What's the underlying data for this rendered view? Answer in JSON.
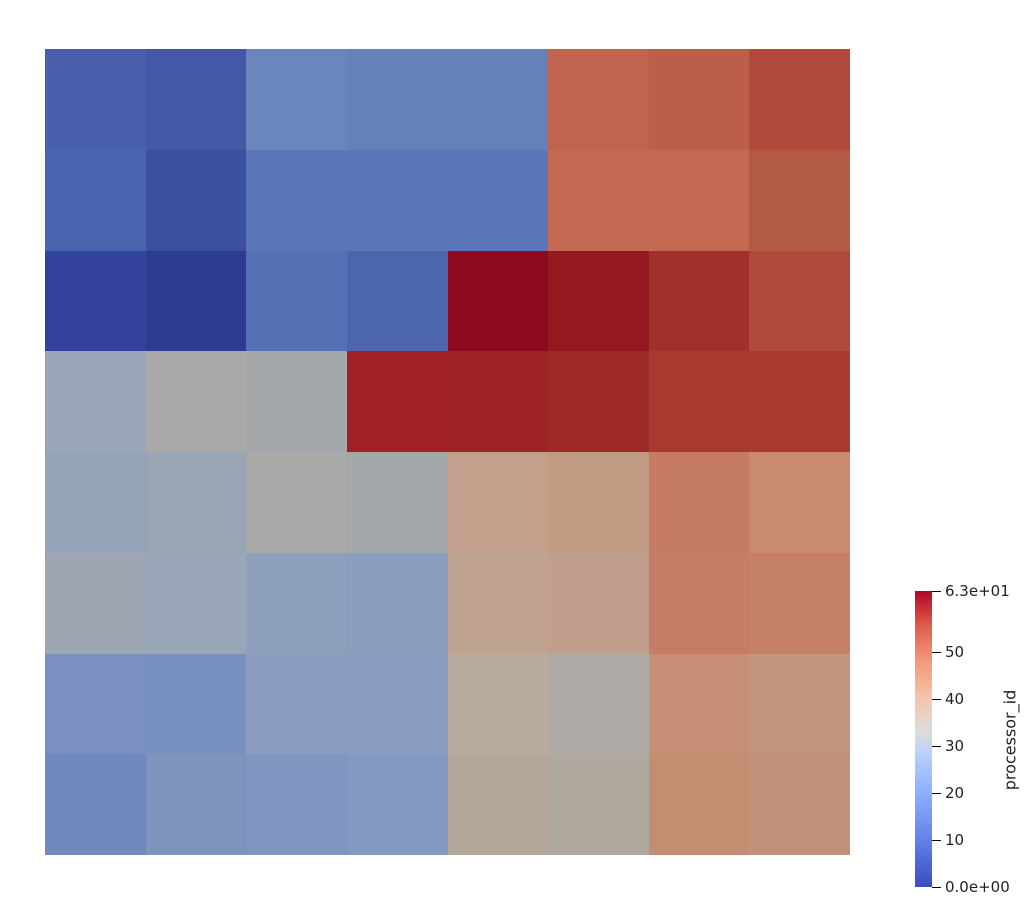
{
  "scalar_bar": {
    "title": "processor_id",
    "range": [
      0,
      63
    ],
    "ticks": [
      {
        "label": "6.3e+01",
        "value": 63
      },
      {
        "label": "50",
        "value": 50
      },
      {
        "label": "40",
        "value": 40
      },
      {
        "label": "30",
        "value": 30
      },
      {
        "label": "20",
        "value": 20
      },
      {
        "label": "10",
        "value": 10
      },
      {
        "label": "0.0e+00",
        "value": 0
      }
    ],
    "colormap": "coolwarm"
  },
  "partition_colors": [
    [
      "#4a5fab",
      "#4558a8",
      "#6a86bd",
      "#6680ba",
      "#6680ba",
      "#c0644e",
      "#bb5f4a",
      "#b04a3c"
    ],
    [
      "#4a64b0",
      "#3c4f9e",
      "#5a75b8",
      "#5a75b8",
      "#5a75b8",
      "#c46a52",
      "#c46a52",
      "#b35a45"
    ],
    [
      "#33429a",
      "#2e3b92",
      "#5570b5",
      "#4e66b0",
      "#8b0a1e",
      "#931820",
      "#a0302a",
      "#b04a3c"
    ],
    [
      "#9aa6b8",
      "#a9a9a7",
      "#a5a8ab",
      "#a21f25",
      "#9e2226",
      "#9f2a28",
      "#a8392f",
      "#a8392f"
    ],
    [
      "#93a3b8",
      "#9aa6b4",
      "#a9a9a7",
      "#a5a8ab",
      "#c3a08c",
      "#c09a82",
      "#c57a64",
      "#c98a72"
    ],
    [
      "#9ea6b4",
      "#98a6b8",
      "#8ea0bc",
      "#8a9ebe",
      "#c0a290",
      "#c0a08c",
      "#c67d65",
      "#c48068"
    ],
    [
      "#7a8fc2",
      "#7890c0",
      "#8c9cc0",
      "#8a9cc0",
      "#b9ab9d",
      "#aeaaa5",
      "#c78f76",
      "#c2957e"
    ],
    [
      "#7088bc",
      "#7d94bd",
      "#8096c0",
      "#8399c0",
      "#b4a698",
      "#aea89f",
      "#c38d72",
      "#c19279"
    ]
  ]
}
